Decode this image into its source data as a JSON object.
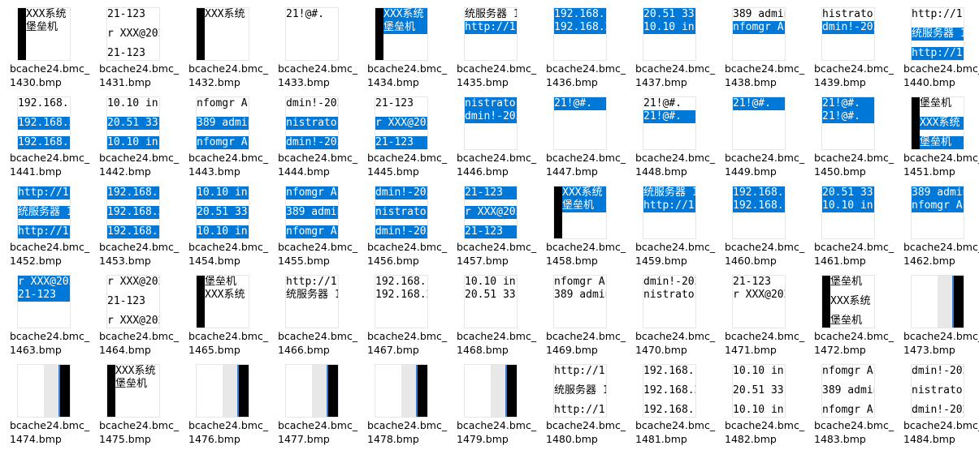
{
  "items": [
    {
      "label": [
        "bcache24.bmc_",
        "1430.bmp"
      ],
      "bar": "left",
      "lines": [
        {
          "text": "XXX系统",
          "highlight": false
        },
        {
          "text": "堡垒机",
          "highlight": false
        }
      ]
    },
    {
      "label": [
        "bcache24.bmc_",
        "1431.bmp"
      ],
      "lines": [
        {
          "text": "21-123",
          "highlight": false
        },
        {
          "text": "r XXX@202",
          "highlight": false
        },
        {
          "text": "21-123",
          "highlight": false
        }
      ]
    },
    {
      "label": [
        "bcache24.bmc_",
        "1432.bmp"
      ],
      "bar": "left",
      "lines": [
        {
          "text": "XXX系统",
          "highlight": false
        }
      ]
    },
    {
      "label": [
        "bcache24.bmc_",
        "1433.bmp"
      ],
      "lines": [
        {
          "text": "21!@#.",
          "highlight": false
        }
      ]
    },
    {
      "label": [
        "bcache24.bmc_",
        "1434.bmp"
      ],
      "bar": "left",
      "lines": [
        {
          "text": "XXX系统",
          "highlight": true
        },
        {
          "text": "堡垒机",
          "highlight": true
        }
      ]
    },
    {
      "label": [
        "bcache24.bmc_",
        "1435.bmp"
      ],
      "lines": [
        {
          "text": "统服务器 1",
          "highlight": false
        },
        {
          "text": "http://1",
          "highlight": true
        }
      ]
    },
    {
      "label": [
        "bcache24.bmc_",
        "1436.bmp"
      ],
      "lines": [
        {
          "text": "192.168.1",
          "highlight": true
        },
        {
          "text": "192.168.2",
          "highlight": true
        }
      ]
    },
    {
      "label": [
        "bcache24.bmc_",
        "1437.bmp"
      ],
      "lines": [
        {
          "text": "20.51  33",
          "highlight": true
        },
        {
          "text": "10.10  in",
          "highlight": true
        }
      ]
    },
    {
      "label": [
        "bcache24.bmc_",
        "1438.bmp"
      ],
      "lines": [
        {
          "text": "389 admin",
          "highlight": false
        },
        {
          "text": "nfomgr Ac",
          "highlight": true
        }
      ]
    },
    {
      "label": [
        "bcache24.bmc_",
        "1439.bmp"
      ],
      "lines": [
        {
          "text": "histrator",
          "highlight": false
        },
        {
          "text": "dmin!-202",
          "highlight": true
        }
      ]
    },
    {
      "label": [
        "bcache24.bmc_",
        "1440.bmp"
      ],
      "lines": [
        {
          "text": "http://1",
          "highlight": false
        },
        {
          "text": "统服务器 1",
          "highlight": true
        },
        {
          "text": "http://1",
          "highlight": true
        }
      ]
    },
    {
      "label": [
        "bcache24.bmc_",
        "1441.bmp"
      ],
      "lines": [
        {
          "text": "192.168.1",
          "highlight": false
        },
        {
          "text": "192.168.2",
          "highlight": true
        },
        {
          "text": "192.168.1",
          "highlight": true
        }
      ]
    },
    {
      "label": [
        "bcache24.bmc_",
        "1442.bmp"
      ],
      "lines": [
        {
          "text": "10.10  in",
          "highlight": false
        },
        {
          "text": "20.51  33",
          "highlight": true
        },
        {
          "text": "10.10  in",
          "highlight": true
        }
      ]
    },
    {
      "label": [
        "bcache24.bmc_",
        "1443.bmp"
      ],
      "lines": [
        {
          "text": "nfomgr Ac",
          "highlight": false
        },
        {
          "text": "389 admin",
          "highlight": true
        },
        {
          "text": "nfomgr Ac",
          "highlight": true
        }
      ]
    },
    {
      "label": [
        "bcache24.bmc_",
        "1444.bmp"
      ],
      "lines": [
        {
          "text": "dmin!-202",
          "highlight": false
        },
        {
          "text": "nistrator",
          "highlight": true
        },
        {
          "text": "dmin!-202",
          "highlight": true
        }
      ]
    },
    {
      "label": [
        "bcache24.bmc_",
        "1445.bmp"
      ],
      "lines": [
        {
          "text": "21-123",
          "highlight": false
        },
        {
          "text": "r XXX@202",
          "highlight": true
        },
        {
          "text": "21-123",
          "highlight": true
        }
      ]
    },
    {
      "label": [
        "bcache24.bmc_",
        "1446.bmp"
      ],
      "lines": [
        {
          "text": "nistrator",
          "highlight": true
        },
        {
          "text": "dmin!-202",
          "highlight": true
        }
      ]
    },
    {
      "label": [
        "bcache24.bmc_",
        "1447.bmp"
      ],
      "lines": [
        {
          "text": "21!@#.",
          "highlight": true
        }
      ]
    },
    {
      "label": [
        "bcache24.bmc_",
        "1448.bmp"
      ],
      "lines": [
        {
          "text": "21!@#.",
          "highlight": false
        },
        {
          "text": "21!@#.",
          "highlight": true
        }
      ]
    },
    {
      "label": [
        "bcache24.bmc_",
        "1449.bmp"
      ],
      "lines": [
        {
          "text": "21!@#.",
          "highlight": true
        }
      ]
    },
    {
      "label": [
        "bcache24.bmc_",
        "1450.bmp"
      ],
      "lines": [
        {
          "text": "21!@#.",
          "highlight": true
        },
        {
          "text": "21!@#.",
          "highlight": true
        }
      ]
    },
    {
      "label": [
        "bcache24.bmc_",
        "1451.bmp"
      ],
      "bar": "left",
      "lines": [
        {
          "text": "堡垒机",
          "highlight": false
        },
        {
          "text": "XXX系统",
          "highlight": true
        },
        {
          "text": "堡垒机",
          "highlight": true
        }
      ]
    },
    {
      "label": [
        "bcache24.bmc_",
        "1452.bmp"
      ],
      "lines": [
        {
          "text": "http://1",
          "highlight": true
        },
        {
          "text": "统服务器 1",
          "highlight": true
        },
        {
          "text": "http://1",
          "highlight": true
        }
      ]
    },
    {
      "label": [
        "bcache24.bmc_",
        "1453.bmp"
      ],
      "lines": [
        {
          "text": "192.168.1",
          "highlight": true
        },
        {
          "text": "192.168.2",
          "highlight": true
        },
        {
          "text": "192.168.1",
          "highlight": true
        }
      ]
    },
    {
      "label": [
        "bcache24.bmc_",
        "1454.bmp"
      ],
      "lines": [
        {
          "text": "10.10  in",
          "highlight": true
        },
        {
          "text": "20.51  33",
          "highlight": true
        },
        {
          "text": "10.10  in",
          "highlight": true
        }
      ]
    },
    {
      "label": [
        "bcache24.bmc_",
        "1455.bmp"
      ],
      "lines": [
        {
          "text": "nfomgr Ac",
          "highlight": true
        },
        {
          "text": "389 admin",
          "highlight": true
        },
        {
          "text": "nfomgr Ac",
          "highlight": true
        }
      ]
    },
    {
      "label": [
        "bcache24.bmc_",
        "1456.bmp"
      ],
      "lines": [
        {
          "text": "dmin!-202",
          "highlight": true
        },
        {
          "text": "nistrator",
          "highlight": true
        },
        {
          "text": "dmin!-202",
          "highlight": true
        }
      ]
    },
    {
      "label": [
        "bcache24.bmc_",
        "1457.bmp"
      ],
      "lines": [
        {
          "text": "21-123",
          "highlight": true
        },
        {
          "text": "r XXX@202",
          "highlight": true
        },
        {
          "text": "21-123",
          "highlight": true
        }
      ]
    },
    {
      "label": [
        "bcache24.bmc_",
        "1458.bmp"
      ],
      "bar": "left",
      "lines": [
        {
          "text": "XXX系统",
          "highlight": true
        },
        {
          "text": "堡垒机",
          "highlight": true
        }
      ]
    },
    {
      "label": [
        "bcache24.bmc_",
        "1459.bmp"
      ],
      "lines": [
        {
          "text": "统服务器 1",
          "highlight": true
        },
        {
          "text": "http://1",
          "highlight": true
        }
      ]
    },
    {
      "label": [
        "bcache24.bmc_",
        "1460.bmp"
      ],
      "lines": [
        {
          "text": "192.168.1",
          "highlight": true
        },
        {
          "text": "192.168.1",
          "highlight": true
        }
      ]
    },
    {
      "label": [
        "bcache24.bmc_",
        "1461.bmp"
      ],
      "lines": [
        {
          "text": "20.51  33",
          "highlight": true
        },
        {
          "text": "10.10  in",
          "highlight": true
        }
      ]
    },
    {
      "label": [
        "bcache24.bmc_",
        "1462.bmp"
      ],
      "lines": [
        {
          "text": "389 admin",
          "highlight": true
        },
        {
          "text": "nfomgr Ac",
          "highlight": true
        }
      ]
    },
    {
      "label": [
        "bcache24.bmc_",
        "1463.bmp"
      ],
      "lines": [
        {
          "text": "r XXX@202",
          "highlight": true
        },
        {
          "text": "21-123",
          "highlight": true
        }
      ]
    },
    {
      "label": [
        "bcache24.bmc_",
        "1464.bmp"
      ],
      "lines": [
        {
          "text": "r XXX@202",
          "highlight": false
        },
        {
          "text": "21-123",
          "highlight": false
        },
        {
          "text": "r XXX@202",
          "highlight": false
        }
      ]
    },
    {
      "label": [
        "bcache24.bmc_",
        "1465.bmp"
      ],
      "bar": "left",
      "lines": [
        {
          "text": "堡垒机",
          "highlight": false
        },
        {
          "text": "XXX系统",
          "highlight": false
        }
      ]
    },
    {
      "label": [
        "bcache24.bmc_",
        "1466.bmp"
      ],
      "lines": [
        {
          "text": "http://1",
          "highlight": false
        },
        {
          "text": "统服务器 1",
          "highlight": false
        }
      ]
    },
    {
      "label": [
        "bcache24.bmc_",
        "1467.bmp"
      ],
      "lines": [
        {
          "text": "192.168.1",
          "highlight": false
        },
        {
          "text": "192.168.2",
          "highlight": false
        }
      ]
    },
    {
      "label": [
        "bcache24.bmc_",
        "1468.bmp"
      ],
      "lines": [
        {
          "text": "10.10  in",
          "highlight": false
        },
        {
          "text": "20.51  33",
          "highlight": false
        }
      ]
    },
    {
      "label": [
        "bcache24.bmc_",
        "1469.bmp"
      ],
      "lines": [
        {
          "text": "nfomgr Ac",
          "highlight": false
        },
        {
          "text": "389 admin",
          "highlight": false
        }
      ]
    },
    {
      "label": [
        "bcache24.bmc_",
        "1470.bmp"
      ],
      "lines": [
        {
          "text": "dmin!-202",
          "highlight": false
        },
        {
          "text": "nistrator",
          "highlight": false
        }
      ]
    },
    {
      "label": [
        "bcache24.bmc_",
        "1471.bmp"
      ],
      "lines": [
        {
          "text": "21-123",
          "highlight": false
        },
        {
          "text": "r XXX@202",
          "highlight": false
        }
      ]
    },
    {
      "label": [
        "bcache24.bmc_",
        "1472.bmp"
      ],
      "bar": "left",
      "lines": [
        {
          "text": "堡垒机",
          "highlight": false
        },
        {
          "text": "XXX系统",
          "highlight": false
        },
        {
          "text": "堡垒机",
          "highlight": false
        }
      ]
    },
    {
      "label": [
        "bcache24.bmc_",
        "1473.bmp"
      ],
      "bar": "right"
    },
    {
      "label": [
        "bcache24.bmc_",
        "1474.bmp"
      ],
      "bar": "right"
    },
    {
      "label": [
        "bcache24.bmc_",
        "1475.bmp"
      ],
      "bar": "left",
      "lines": [
        {
          "text": "XXX系统",
          "highlight": false
        },
        {
          "text": "堡垒机",
          "highlight": false
        }
      ]
    },
    {
      "label": [
        "bcache24.bmc_",
        "1476.bmp"
      ],
      "bar": "right"
    },
    {
      "label": [
        "bcache24.bmc_",
        "1477.bmp"
      ],
      "bar": "right"
    },
    {
      "label": [
        "bcache24.bmc_",
        "1478.bmp"
      ],
      "bar": "right"
    },
    {
      "label": [
        "bcache24.bmc_",
        "1479.bmp"
      ],
      "bar": "right"
    },
    {
      "label": [
        "bcache24.bmc_",
        "1480.bmp"
      ],
      "lines": [
        {
          "text": "http://1",
          "highlight": false
        },
        {
          "text": "统服务器 1",
          "highlight": false
        },
        {
          "text": "http://1",
          "highlight": false
        }
      ]
    },
    {
      "label": [
        "bcache24.bmc_",
        "1481.bmp"
      ],
      "lines": [
        {
          "text": "192.168.1",
          "highlight": false
        },
        {
          "text": "192.168.2",
          "highlight": false
        },
        {
          "text": "192.168.1",
          "highlight": false
        }
      ]
    },
    {
      "label": [
        "bcache24.bmc_",
        "1482.bmp"
      ],
      "lines": [
        {
          "text": "10.10  in",
          "highlight": false
        },
        {
          "text": "20.51  33",
          "highlight": false
        },
        {
          "text": "10.10  in",
          "highlight": false
        }
      ]
    },
    {
      "label": [
        "bcache24.bmc_",
        "1483.bmp"
      ],
      "lines": [
        {
          "text": "nfomgr Ac",
          "highlight": false
        },
        {
          "text": "389 admin",
          "highlight": false
        },
        {
          "text": "nfomgr Ac",
          "highlight": false
        }
      ]
    },
    {
      "label": [
        "bcache24.bmc_",
        "1484.bmp"
      ],
      "lines": [
        {
          "text": "dmin!-202",
          "highlight": false
        },
        {
          "text": "nistrator",
          "highlight": false
        },
        {
          "text": "dmin!-202",
          "highlight": false
        }
      ]
    }
  ]
}
